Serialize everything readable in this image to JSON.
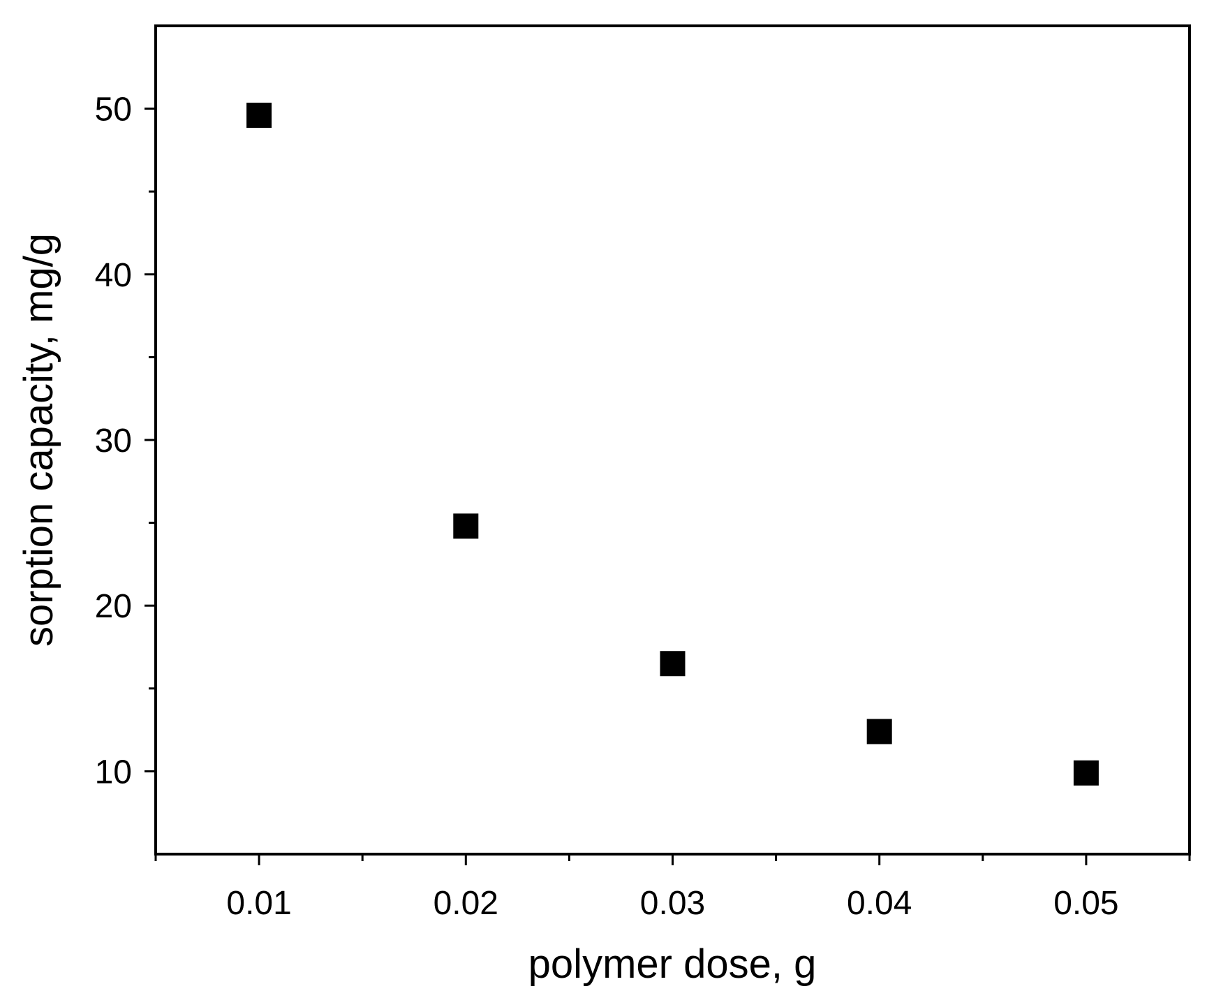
{
  "chart_data": {
    "type": "scatter",
    "title": "",
    "xlabel": "polymer dose, g",
    "ylabel": "sorption capacity, mg/g",
    "xlim": [
      0.005,
      0.055
    ],
    "ylim": [
      5,
      55
    ],
    "x_ticks": [
      0.01,
      0.02,
      0.03,
      0.04,
      0.05
    ],
    "x_tick_labels": [
      "0.01",
      "0.02",
      "0.03",
      "0.04",
      "0.05"
    ],
    "x_minor_ticks": [
      0.005,
      0.015,
      0.025,
      0.035,
      0.045,
      0.055
    ],
    "y_ticks": [
      10,
      20,
      30,
      40,
      50
    ],
    "y_tick_labels": [
      "10",
      "20",
      "30",
      "40",
      "50"
    ],
    "y_minor_ticks": [
      15,
      25,
      35,
      45
    ],
    "grid": false,
    "legend": false,
    "marker": "square",
    "color": "#000000",
    "series": [
      {
        "x": [
          0.01,
          0.02,
          0.03,
          0.04,
          0.05
        ],
        "y": [
          49.6,
          24.8,
          16.5,
          12.4,
          9.9
        ]
      }
    ]
  }
}
